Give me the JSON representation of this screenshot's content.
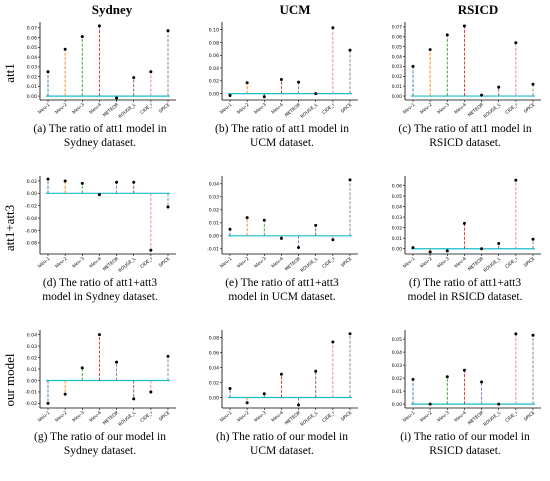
{
  "headers": {
    "columns": [
      "Sydney",
      "UCM",
      "RSICD"
    ],
    "rows": [
      "att1",
      "att1+att3",
      "our model"
    ]
  },
  "palette": [
    "#1f77b4",
    "#ff7f0e",
    "#2ca02c",
    "#d62728",
    "#9467bd",
    "#8c564b",
    "#e377c2",
    "#7f7f7f"
  ],
  "baseline_color": "#17becf",
  "chart_data": [
    {
      "type": "scatter",
      "panel": "a",
      "caption_lines": [
        "(a) The ratio of att1 model in",
        "Sydney dataset."
      ],
      "categories": [
        "bleu-1",
        "bleu-2",
        "bleu-3",
        "bleu-4",
        "METEOR",
        "ROUGE_L",
        "CIDE_r",
        "SPICE"
      ],
      "values": [
        0.025,
        0.048,
        0.061,
        0.072,
        -0.002,
        0.019,
        0.025,
        0.067
      ],
      "ylim": [
        -0.004,
        0.076
      ],
      "yticks": [
        0.0,
        0.01,
        0.02,
        0.03,
        0.04,
        0.05,
        0.06,
        0.07
      ],
      "ytick_labels": [
        "0.00",
        "0.01",
        "0.02",
        "0.03",
        "0.04",
        "0.05",
        "0.06",
        "0.07"
      ]
    },
    {
      "type": "scatter",
      "panel": "b",
      "caption_lines": [
        "(b) The ratio of att1 model in",
        "UCM dataset."
      ],
      "categories": [
        "bleu-1",
        "bleu-2",
        "bleu-3",
        "bleu-4",
        "METEOR",
        "ROUGE_L",
        "CIDE_r",
        "SPICE"
      ],
      "values": [
        -0.003,
        0.017,
        -0.005,
        0.022,
        0.018,
        0.0,
        0.103,
        0.068
      ],
      "ylim": [
        -0.01,
        0.112
      ],
      "yticks": [
        0.0,
        0.02,
        0.04,
        0.06,
        0.08,
        0.1
      ],
      "ytick_labels": [
        "0.00",
        "0.02",
        "0.04",
        "0.06",
        "0.08",
        "0.10"
      ]
    },
    {
      "type": "scatter",
      "panel": "c",
      "caption_lines": [
        "(c) The ratio of att1 model in",
        "RSICD dataset."
      ],
      "categories": [
        "bleu-1",
        "bleu-2",
        "bleu-3",
        "bleu-4",
        "METEOR",
        "ROUGE_L",
        "CIDE_r",
        "SPICE"
      ],
      "values": [
        0.03,
        0.047,
        0.062,
        0.071,
        0.001,
        0.009,
        0.054,
        0.012
      ],
      "ylim": [
        -0.004,
        0.075
      ],
      "yticks": [
        0.0,
        0.01,
        0.02,
        0.03,
        0.04,
        0.05,
        0.06,
        0.07
      ],
      "ytick_labels": [
        "0.00",
        "0.01",
        "0.02",
        "0.03",
        "0.04",
        "0.05",
        "0.06",
        "0.07"
      ]
    },
    {
      "type": "scatter",
      "panel": "d",
      "caption_lines": [
        "(d) The ratio of att1+att3",
        "model in Sydney dataset."
      ],
      "categories": [
        "bleu-1",
        "bleu-2",
        "bleu-3",
        "bleu-4",
        "METEOR",
        "ROUGE_L",
        "CIDE_r",
        "SPICE"
      ],
      "values": [
        0.023,
        0.02,
        0.016,
        -0.002,
        0.018,
        0.018,
        -0.092,
        -0.022
      ],
      "ylim": [
        -0.098,
        0.028
      ],
      "yticks": [
        -0.08,
        -0.06,
        -0.04,
        -0.02,
        0.0,
        0.02
      ],
      "ytick_labels": [
        "-0.08",
        "-0.06",
        "-0.04",
        "-0.02",
        "0.00",
        "0.02"
      ]
    },
    {
      "type": "scatter",
      "panel": "e",
      "caption_lines": [
        "(e) The ratio of att1+att3",
        "model in UCM dataset."
      ],
      "categories": [
        "bleu-1",
        "bleu-2",
        "bleu-3",
        "bleu-4",
        "METEOR",
        "ROUGE_L",
        "CIDE_r",
        "SPICE"
      ],
      "values": [
        0.005,
        0.014,
        0.012,
        -0.002,
        -0.009,
        0.008,
        -0.003,
        0.043
      ],
      "ylim": [
        -0.014,
        0.046
      ],
      "yticks": [
        -0.01,
        0.0,
        0.01,
        0.02,
        0.03,
        0.04
      ],
      "ytick_labels": [
        "-0.01",
        "0.00",
        "0.01",
        "0.02",
        "0.03",
        "0.04"
      ]
    },
    {
      "type": "scatter",
      "panel": "f",
      "caption_lines": [
        "(f) The ratio of att1+att3",
        "model in RSICD dataset."
      ],
      "categories": [
        "bleu-1",
        "bleu-2",
        "bleu-3",
        "bleu-4",
        "METEOR",
        "ROUGE_L",
        "CIDE_r",
        "SPICE"
      ],
      "values": [
        0.001,
        -0.003,
        -0.002,
        0.024,
        0.0,
        0.005,
        0.065,
        0.009
      ],
      "ylim": [
        -0.005,
        0.069
      ],
      "yticks": [
        0.0,
        0.01,
        0.02,
        0.03,
        0.04,
        0.05,
        0.06
      ],
      "ytick_labels": [
        "0.00",
        "0.01",
        "0.02",
        "0.03",
        "0.04",
        "0.05",
        "0.06"
      ]
    },
    {
      "type": "scatter",
      "panel": "g",
      "caption_lines": [
        "(g) The ratio of our model in",
        "Sydney dataset."
      ],
      "categories": [
        "bleu-1",
        "bleu-2",
        "bleu-3",
        "bleu-4",
        "METEOR",
        "ROUGE_L",
        "CIDE_r",
        "SPICE"
      ],
      "values": [
        -0.02,
        -0.012,
        0.011,
        0.04,
        0.016,
        -0.016,
        -0.01,
        0.021
      ],
      "ylim": [
        -0.024,
        0.044
      ],
      "yticks": [
        -0.02,
        -0.01,
        0.0,
        0.01,
        0.02,
        0.03,
        0.04
      ],
      "ytick_labels": [
        "-0.02",
        "-0.01",
        "0.00",
        "0.01",
        "0.02",
        "0.03",
        "0.04"
      ]
    },
    {
      "type": "scatter",
      "panel": "h",
      "caption_lines": [
        "(h) The ratio of our model in",
        "UCM dataset."
      ],
      "categories": [
        "bleu-1",
        "bleu-2",
        "bleu-3",
        "bleu-4",
        "METEOR",
        "ROUGE_L",
        "CIDE_r",
        "SPICE"
      ],
      "values": [
        0.012,
        -0.007,
        0.005,
        0.031,
        -0.01,
        0.035,
        0.074,
        0.085
      ],
      "ylim": [
        -0.014,
        0.09
      ],
      "yticks": [
        0.0,
        0.02,
        0.04,
        0.06,
        0.08
      ],
      "ytick_labels": [
        "0.00",
        "0.02",
        "0.04",
        "0.06",
        "0.08"
      ]
    },
    {
      "type": "scatter",
      "panel": "i",
      "caption_lines": [
        "(i) The ratio of our model in",
        "RSICD dataset."
      ],
      "categories": [
        "bleu-1",
        "bleu-2",
        "bleu-3",
        "bleu-4",
        "METEOR",
        "ROUGE_L",
        "CIDE_r",
        "SPICE"
      ],
      "values": [
        0.019,
        0.0,
        0.021,
        0.026,
        0.017,
        0.0,
        0.054,
        0.053
      ],
      "ylim": [
        -0.003,
        0.057
      ],
      "yticks": [
        0.0,
        0.01,
        0.02,
        0.03,
        0.04,
        0.05
      ],
      "ytick_labels": [
        "0.00",
        "0.01",
        "0.02",
        "0.03",
        "0.04",
        "0.05"
      ]
    }
  ]
}
